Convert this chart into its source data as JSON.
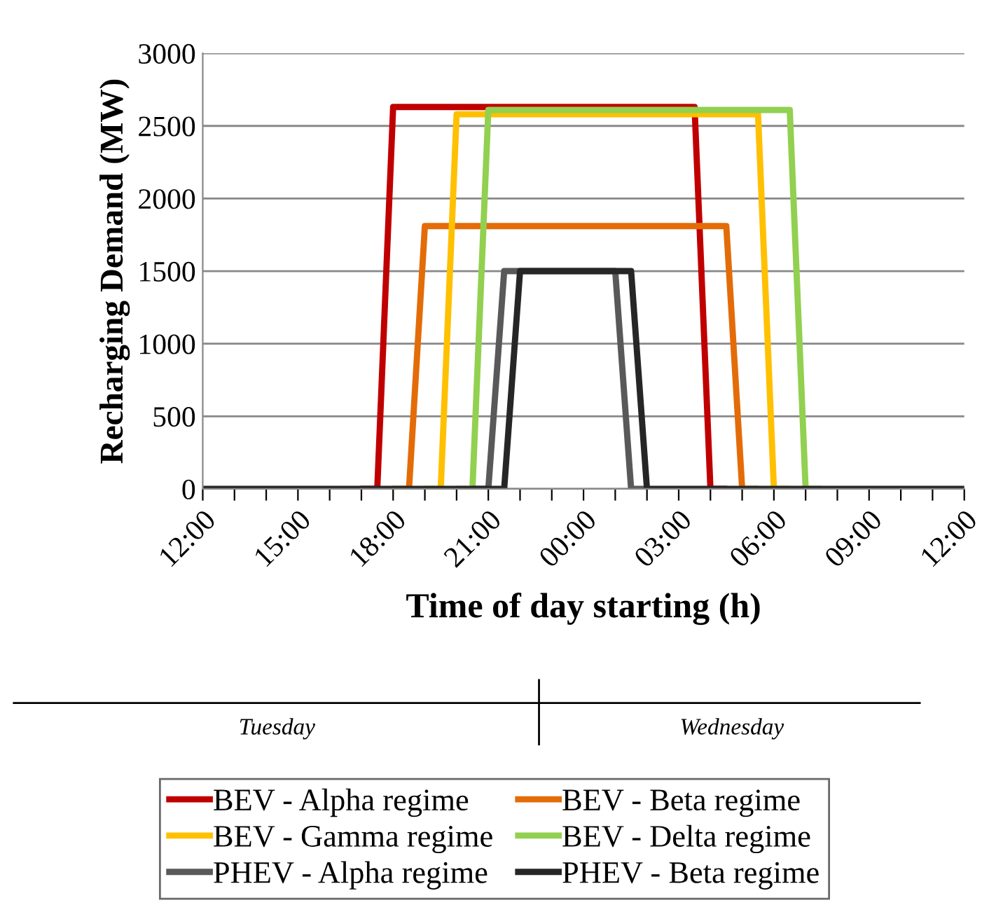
{
  "chart_data": {
    "type": "line",
    "xlabel": "Time of day starting (h)",
    "ylabel": "Recharging Demand (MW)",
    "categories": [
      "12:00",
      null,
      null,
      null,
      null,
      null,
      "15:00",
      null,
      null,
      null,
      null,
      null,
      "18:00",
      null,
      null,
      null,
      null,
      null,
      "21:00",
      null,
      null,
      null,
      null,
      null,
      "00:00",
      null,
      null,
      null,
      null,
      null,
      "03:00",
      null,
      null,
      null,
      null,
      null,
      "06:00",
      null,
      null,
      null,
      null,
      null,
      "09:00",
      null,
      null,
      null,
      null,
      null,
      "12:00"
    ],
    "ylim": [
      0,
      3000
    ],
    "yticks": [
      0,
      500,
      1000,
      1500,
      2000,
      2500,
      3000
    ],
    "grid": "y",
    "legend": "bottom",
    "marker": "none",
    "line_style": "solid",
    "annotations": [
      "Tuesday",
      "Wednesday"
    ],
    "series": [
      {
        "name": "BEV - Alpha regime",
        "color": "#c00000",
        "values": [
          null,
          null,
          null,
          null,
          null,
          null,
          null,
          null,
          null,
          null,
          0,
          0,
          2630,
          2630,
          2630,
          2630,
          2630,
          2630,
          2630,
          2630,
          2630,
          2630,
          2630,
          2630,
          2630,
          2630,
          2630,
          2630,
          2630,
          2630,
          2630,
          2630,
          0,
          0,
          null,
          null,
          null,
          null,
          null,
          null,
          null,
          null,
          null,
          null,
          null,
          null,
          null,
          null,
          null
        ]
      },
      {
        "name": "BEV - Beta regime",
        "color": "#e36c09",
        "values": [
          null,
          null,
          null,
          null,
          null,
          null,
          null,
          null,
          null,
          null,
          null,
          null,
          0,
          0,
          1810,
          1810,
          1810,
          1810,
          1810,
          1810,
          1810,
          1810,
          1810,
          1810,
          1810,
          1810,
          1810,
          1810,
          1810,
          1810,
          1810,
          1810,
          1810,
          1810,
          0,
          0,
          null,
          null,
          null,
          null,
          null,
          null,
          null,
          null,
          null,
          null,
          null,
          null,
          null
        ]
      },
      {
        "name": "BEV - Gamma regime",
        "color": "#ffc000",
        "values": [
          null,
          null,
          null,
          null,
          null,
          null,
          null,
          null,
          null,
          null,
          null,
          null,
          null,
          null,
          0,
          0,
          2580,
          2580,
          2580,
          2580,
          2580,
          2580,
          2580,
          2580,
          2580,
          2580,
          2580,
          2580,
          2580,
          2580,
          2580,
          2580,
          2580,
          2580,
          2580,
          2580,
          0,
          0,
          null,
          null,
          null,
          null,
          null,
          null,
          null,
          null,
          null,
          null,
          null
        ]
      },
      {
        "name": "BEV - Delta regime",
        "color": "#92d050",
        "values": [
          null,
          null,
          null,
          null,
          null,
          null,
          null,
          null,
          null,
          null,
          null,
          null,
          null,
          null,
          null,
          null,
          0,
          0,
          2610,
          2610,
          2610,
          2610,
          2610,
          2610,
          2610,
          2610,
          2610,
          2610,
          2610,
          2610,
          2610,
          2610,
          2610,
          2610,
          2610,
          2610,
          2610,
          2610,
          0,
          0,
          null,
          null,
          null,
          null,
          null,
          null,
          null,
          null,
          null
        ]
      },
      {
        "name": "PHEV - Alpha regime",
        "color": "#595959",
        "values": [
          null,
          null,
          null,
          null,
          null,
          null,
          null,
          null,
          null,
          null,
          null,
          null,
          null,
          null,
          null,
          null,
          null,
          0,
          0,
          1500,
          1500,
          1500,
          1500,
          1500,
          1500,
          1500,
          1500,
          0,
          0,
          null,
          null,
          null,
          null,
          null,
          null,
          null,
          null,
          null,
          null,
          null,
          null,
          null,
          null,
          null,
          null,
          null,
          null,
          null,
          null
        ]
      },
      {
        "name": "PHEV - Beta regime",
        "color": "#262626",
        "values": [
          0,
          0,
          0,
          0,
          0,
          0,
          0,
          0,
          0,
          0,
          0,
          0,
          0,
          0,
          0,
          0,
          0,
          0,
          0,
          0,
          1500,
          1500,
          1500,
          1500,
          1500,
          1500,
          1500,
          1500,
          0,
          0,
          0,
          0,
          0,
          0,
          0,
          0,
          0,
          0,
          0,
          0,
          0,
          0,
          0,
          0,
          0,
          0,
          0,
          0,
          0
        ]
      }
    ]
  }
}
